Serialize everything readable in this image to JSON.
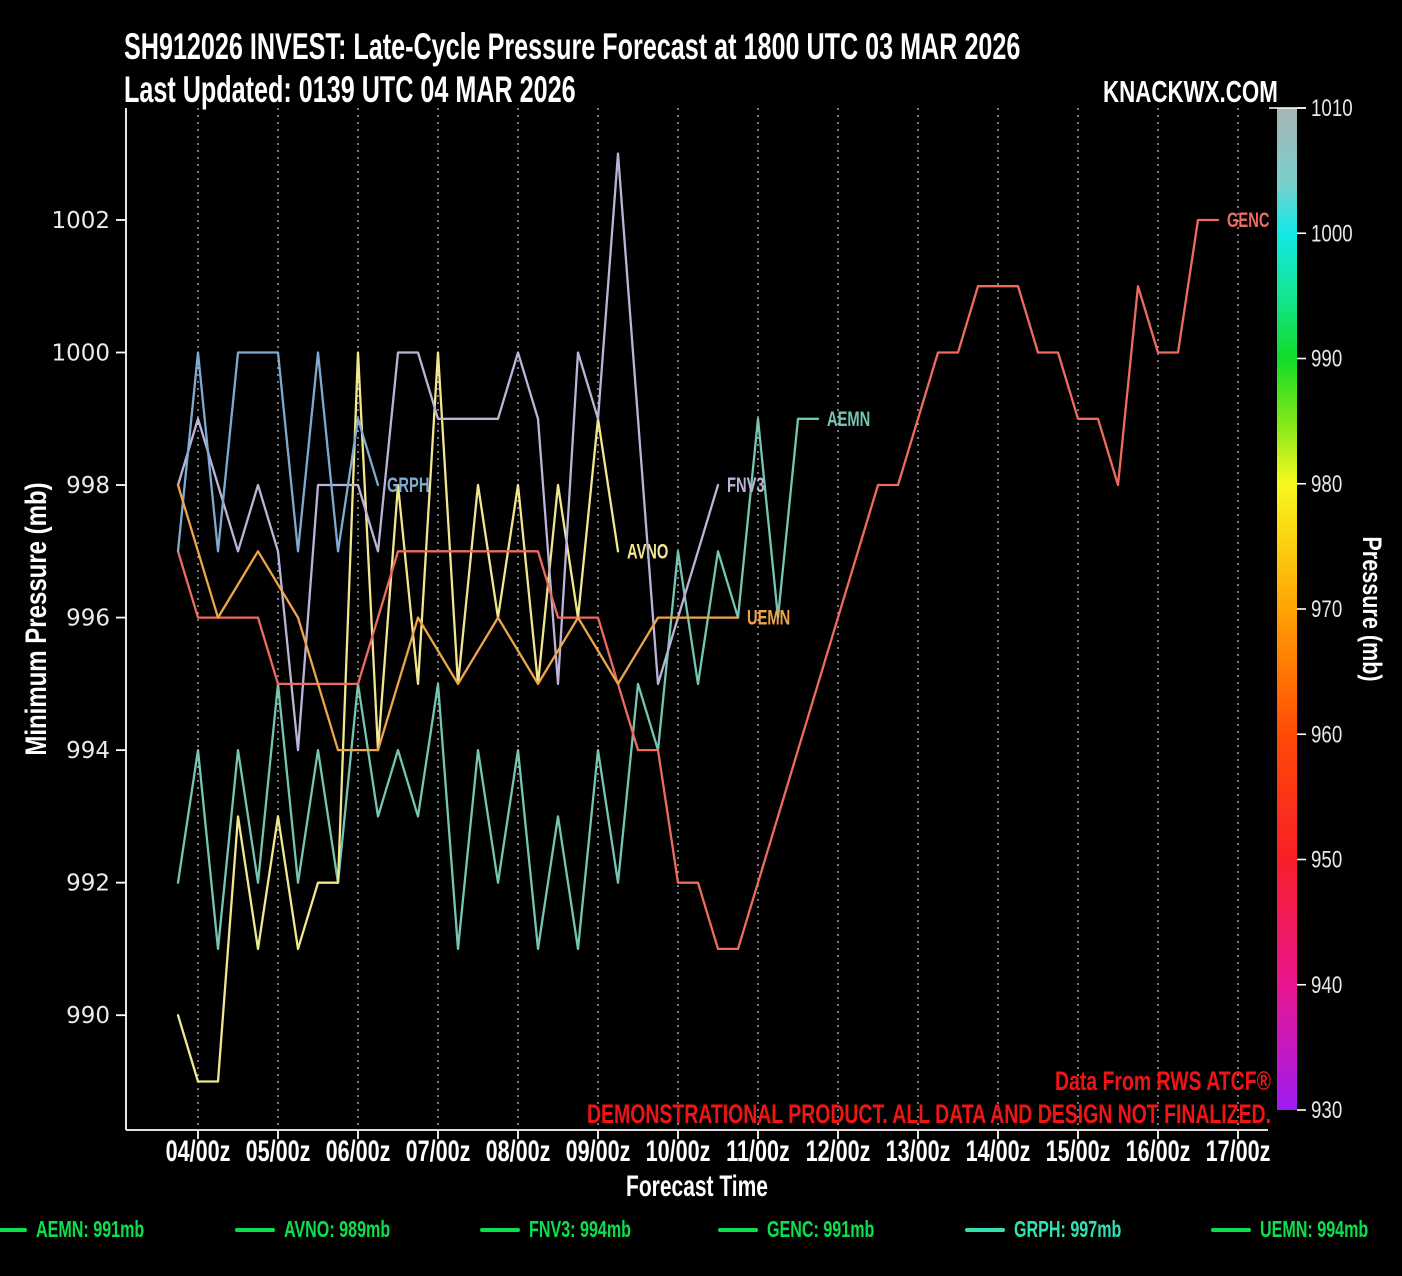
{
  "title": {
    "line1": "SH912026 INVEST: Late-Cycle Pressure Forecast at 1800 UTC 03 MAR 2026",
    "line2": "Last Updated: 0139 UTC 04 MAR 2026"
  },
  "brand": "KNACKWX.COM",
  "watermark": {
    "line1": "Data From RWS ATCF®",
    "line2": "DEMONSTRATIONAL PRODUCT. ALL DATA AND DESIGN NOT FINALIZED."
  },
  "legend": {
    "items": [
      {
        "label": "AEMN: 991mb",
        "color": "#0be04c"
      },
      {
        "label": "AVNO: 989mb",
        "color": "#0be04c"
      },
      {
        "label": "FNV3: 994mb",
        "color": "#0be04c"
      },
      {
        "label": "GENC: 991mb",
        "color": "#0be04c"
      },
      {
        "label": "GRPH: 997mb",
        "color": "#31e2b0"
      },
      {
        "label": "UEMN: 994mb",
        "color": "#0be04c"
      }
    ]
  },
  "chart_data": {
    "type": "line",
    "title": "SH912026 INVEST late-cycle minimum pressure forecast",
    "xlabel": "Forecast Time",
    "ylabel": "Minimum Pressure (mb)",
    "x_categories": [
      "03/18z",
      "04/00z",
      "04/06z",
      "04/12z",
      "04/18z",
      "05/00z",
      "05/06z",
      "05/12z",
      "05/18z",
      "06/00z",
      "06/06z",
      "06/12z",
      "06/18z",
      "07/00z",
      "07/06z",
      "07/12z",
      "07/18z",
      "08/00z",
      "08/06z",
      "08/12z",
      "08/18z",
      "09/00z",
      "09/06z",
      "09/12z",
      "09/18z",
      "10/00z",
      "10/06z",
      "10/12z",
      "10/18z",
      "11/00z",
      "11/06z",
      "11/12z",
      "11/18z",
      "12/00z",
      "12/06z",
      "12/12z",
      "12/18z",
      "13/00z",
      "13/06z",
      "13/12z",
      "13/18z",
      "14/00z",
      "14/06z",
      "14/12z",
      "14/18z",
      "15/00z",
      "15/06z",
      "15/12z",
      "15/18z",
      "16/00z",
      "16/06z",
      "16/12z",
      "16/18z"
    ],
    "x_tick_labels": [
      "04/00z",
      "05/00z",
      "06/00z",
      "07/00z",
      "08/00z",
      "09/00z",
      "10/00z",
      "11/00z",
      "12/00z",
      "13/00z",
      "14/00z",
      "15/00z",
      "16/00z",
      "17/00z"
    ],
    "y_ticks": [
      990,
      992,
      994,
      996,
      998,
      1000,
      1002
    ],
    "ylim": [
      988.3,
      1003.7
    ],
    "grid": "vertical-dashed",
    "legend_position": "bottom",
    "series": [
      {
        "name": "AEMN",
        "color": "#74c6b2",
        "start_index": 0,
        "step": 1,
        "values": [
          992,
          994,
          991,
          994,
          992,
          995,
          992,
          994,
          992,
          995,
          993,
          994,
          993,
          995,
          991,
          994,
          992,
          994,
          991,
          993,
          991,
          994,
          992,
          995,
          994,
          997,
          995,
          997,
          996,
          999,
          996,
          999,
          999
        ]
      },
      {
        "name": "AVNO",
        "color": "#f2e791",
        "start_index": 0,
        "step": 1,
        "values": [
          990,
          989,
          989,
          993,
          991,
          993,
          991,
          992,
          992,
          1000,
          994,
          998,
          995,
          1000,
          995,
          998,
          996,
          998,
          995,
          998,
          996,
          999,
          997
        ]
      },
      {
        "name": "FNV3",
        "color": "#bcb3d9",
        "start_index": 0,
        "step": 1,
        "values": [
          998,
          999,
          998,
          997,
          998,
          997,
          994,
          998,
          998,
          998,
          997,
          1000,
          1000,
          999,
          999,
          999,
          999,
          1000,
          999,
          995,
          1000,
          999,
          1003,
          999,
          995,
          996,
          997,
          998
        ]
      },
      {
        "name": "GENC",
        "color": "#ed6b5f",
        "start_index": 0,
        "step": 1,
        "values": [
          997,
          996,
          996,
          996,
          996,
          995,
          995,
          995,
          995,
          995,
          996,
          997,
          997,
          997,
          997,
          997,
          997,
          997,
          997,
          996,
          996,
          996,
          995,
          994,
          994,
          992,
          992,
          991,
          991,
          992,
          993,
          994,
          995,
          996,
          997,
          998,
          998,
          999,
          1000,
          1000,
          1001,
          1001,
          1001,
          1000,
          1000,
          999,
          999,
          998,
          1001,
          1000,
          1000,
          1002,
          1002
        ]
      },
      {
        "name": "GRPH",
        "color": "#7fabd0",
        "start_index": 0,
        "step": 1,
        "values": [
          997,
          1000,
          997,
          1000,
          1000,
          1000,
          997,
          1000,
          997,
          999,
          998
        ]
      },
      {
        "name": "UEMN",
        "color": "#eea44b",
        "start_index": 0,
        "step": 2,
        "values": [
          998,
          996,
          997,
          996,
          994,
          994,
          996,
          995,
          996,
          995,
          996,
          995,
          996,
          996,
          996
        ]
      }
    ],
    "colorbar": {
      "label": "Pressure (mb)",
      "ticks": [
        1010,
        1000,
        990,
        980,
        970,
        960,
        950,
        940,
        930
      ],
      "range": [
        930,
        1010
      ],
      "stops": [
        {
          "p": 1010,
          "c": "#a7b4b6"
        },
        {
          "p": 1004,
          "c": "#79cfcb"
        },
        {
          "p": 1000,
          "c": "#12e8e8"
        },
        {
          "p": 995,
          "c": "#14e590"
        },
        {
          "p": 990,
          "c": "#11dc28"
        },
        {
          "p": 985,
          "c": "#7fe81a"
        },
        {
          "p": 980,
          "c": "#f8f81e"
        },
        {
          "p": 970,
          "c": "#ffa303"
        },
        {
          "p": 960,
          "c": "#ff4a05"
        },
        {
          "p": 950,
          "c": "#f81f28"
        },
        {
          "p": 940,
          "c": "#e9168f"
        },
        {
          "p": 930,
          "c": "#9e1cf2"
        }
      ]
    }
  }
}
